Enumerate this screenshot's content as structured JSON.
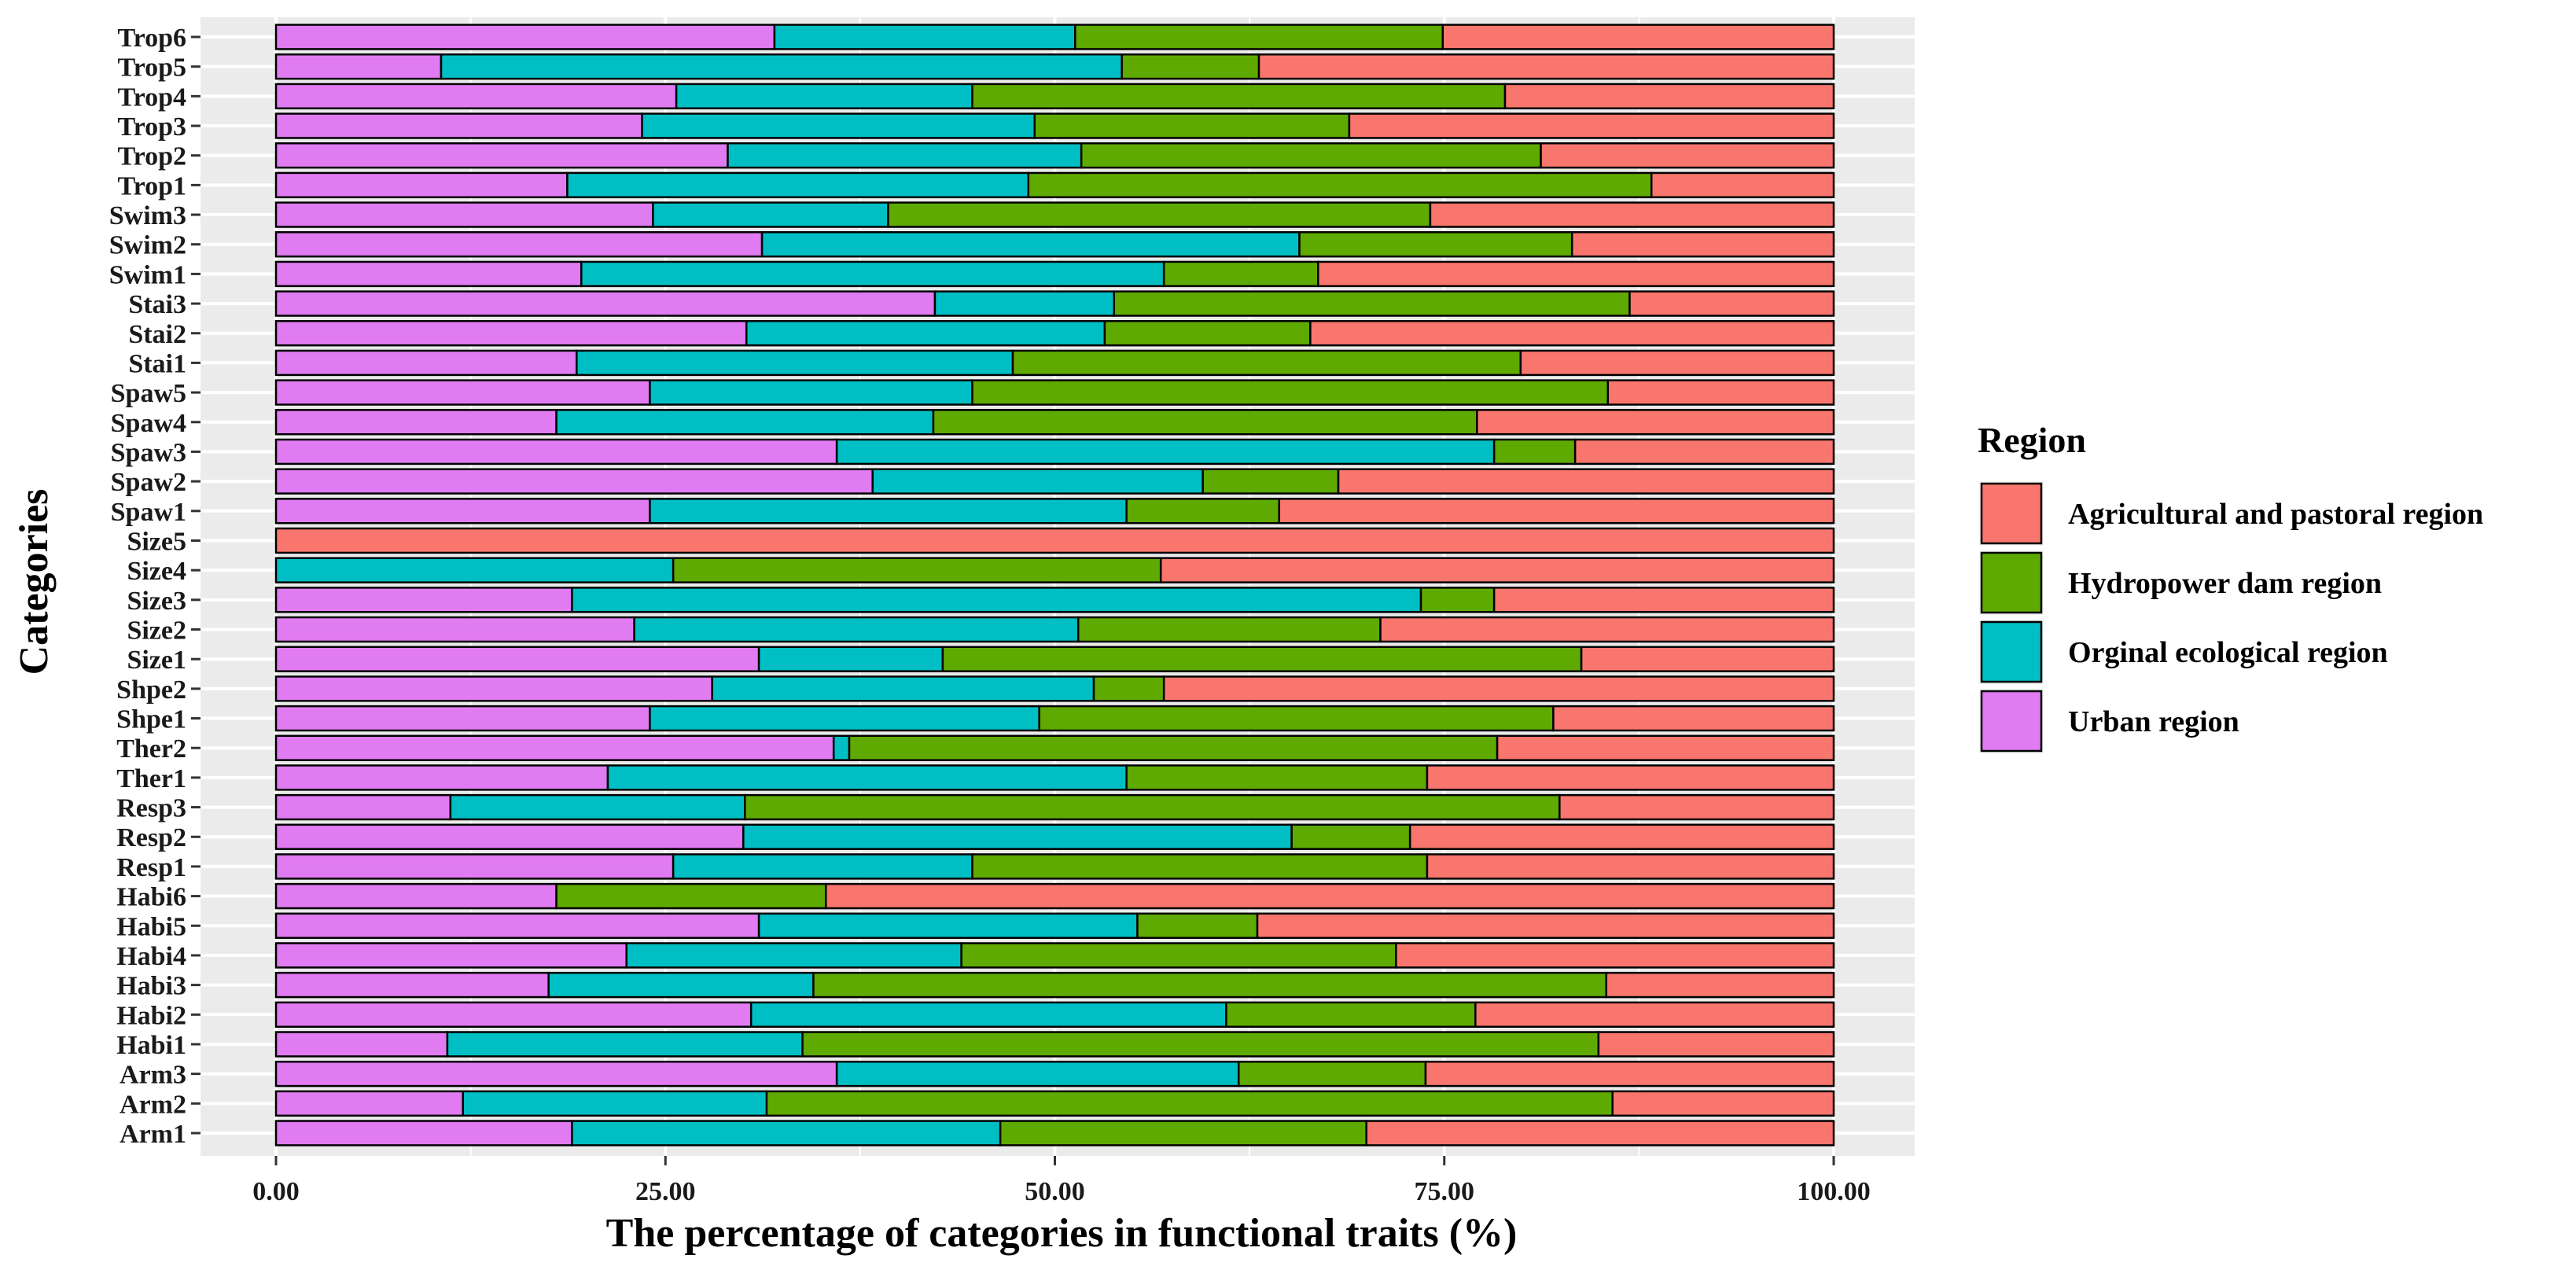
{
  "chart_data": {
    "type": "bar",
    "orientation": "horizontal",
    "stacked": true,
    "title": "",
    "xlabel": "The percentage of categories in functional traits (%)",
    "ylabel": "Categories",
    "xlim": [
      0,
      100
    ],
    "xticks": [
      0,
      25,
      50,
      75,
      100
    ],
    "xtick_labels": [
      "0.00",
      "25.00",
      "50.00",
      "75.00",
      "100.00"
    ],
    "grid": true,
    "legend_position": "right",
    "categories": [
      "Arm1",
      "Arm2",
      "Arm3",
      "Habi1",
      "Habi2",
      "Habi3",
      "Habi4",
      "Habi5",
      "Habi6",
      "Resp1",
      "Resp2",
      "Resp3",
      "Ther1",
      "Ther2",
      "Shpe1",
      "Shpe2",
      "Size1",
      "Size2",
      "Size3",
      "Size4",
      "Size5",
      "Spaw1",
      "Spaw2",
      "Spaw3",
      "Spaw4",
      "Spaw5",
      "Stai1",
      "Stai2",
      "Stai3",
      "Swim1",
      "Swim2",
      "Swim3",
      "Trop1",
      "Trop2",
      "Trop3",
      "Trop4",
      "Trop5",
      "Trop6"
    ],
    "series": [
      {
        "name": "Urban region",
        "color": "#E07BF2",
        "values": [
          19,
          12,
          36,
          11,
          30.5,
          17.5,
          22.5,
          31,
          18,
          25.5,
          30,
          11.2,
          21.3,
          35.8,
          24,
          28,
          31,
          23,
          19,
          0,
          0,
          24,
          38.3,
          36,
          18,
          24,
          19.3,
          30.2,
          42.3,
          19.6,
          31.2,
          24.2,
          18.7,
          29,
          23.5,
          25.7,
          10.6,
          32
        ]
      },
      {
        "name": "Orginal ecological region",
        "color": "#00BFC4",
        "values": [
          27.5,
          19.5,
          25.8,
          22.8,
          30.5,
          17,
          21.5,
          24.3,
          0,
          19.2,
          35.2,
          18.9,
          33.3,
          1,
          25,
          24.5,
          11.8,
          28.5,
          54.5,
          25.5,
          0,
          30.6,
          21.2,
          42.2,
          24.2,
          20.7,
          28,
          23,
          11.5,
          37.4,
          34.5,
          15.1,
          29.6,
          22.7,
          25.2,
          19,
          43.7,
          19.3
        ]
      },
      {
        "name": "Hydropower dam region",
        "color": "#5FAA00",
        "values": [
          23.5,
          54.3,
          12,
          51.1,
          16,
          50.9,
          27.9,
          7.7,
          17.3,
          29.2,
          7.6,
          52.3,
          19.3,
          41.6,
          33,
          4.5,
          41,
          19.4,
          4.7,
          31.3,
          0,
          9.8,
          8.7,
          5.2,
          34.9,
          40.8,
          32.6,
          13.2,
          33.1,
          9.9,
          17.5,
          34.8,
          40,
          29.5,
          20.2,
          34.2,
          8.8,
          23.6
        ]
      },
      {
        "name": "Agricultural and pastoral region",
        "color": "#F8766D",
        "values": [
          30,
          14.2,
          26.2,
          15.1,
          23,
          14.6,
          28.1,
          37,
          64.7,
          26.1,
          27.2,
          17.6,
          26.1,
          21.6,
          18,
          43,
          16.2,
          29.1,
          21.8,
          43.2,
          100,
          35.6,
          31.8,
          16.6,
          22.9,
          14.5,
          20.1,
          33.6,
          13.1,
          33.1,
          16.8,
          25.9,
          11.7,
          18.8,
          31.1,
          21.1,
          36.9,
          25.1
        ]
      }
    ],
    "legend_title": "Region",
    "legend_order": [
      "Agricultural and pastoral region",
      "Hydropower dam region",
      "Orginal ecological region",
      "Urban region"
    ]
  }
}
